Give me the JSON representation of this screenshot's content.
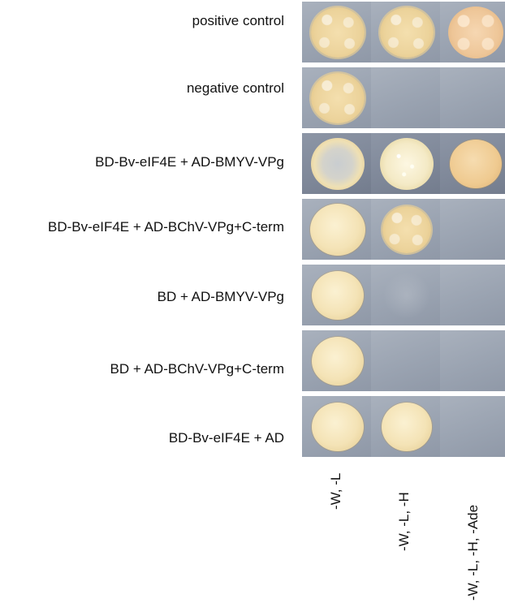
{
  "rows": [
    {
      "label": "positive control"
    },
    {
      "label": "negative control"
    },
    {
      "label": "BD-Bv-eIF4E + AD-BMYV-VPg"
    },
    {
      "label": "BD-Bv-eIF4E + AD-BChV-VPg+C-term"
    },
    {
      "label": "BD + AD-BMYV-VPg"
    },
    {
      "label": "BD + AD-BChV-VPg+C-term"
    },
    {
      "label": "BD-Bv-eIF4E + AD"
    }
  ],
  "columns": [
    {
      "label": "-W, -L"
    },
    {
      "label": "-W, -L, -H"
    },
    {
      "label": "-W, -L, -H, -Ade"
    }
  ]
}
